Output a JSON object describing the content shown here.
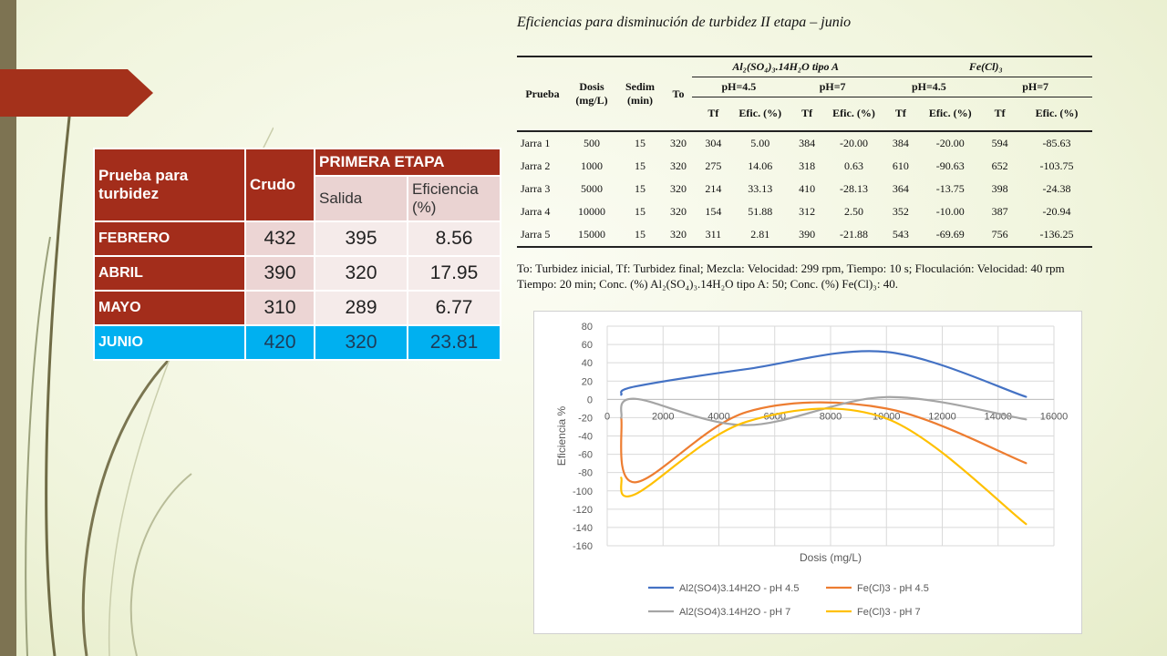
{
  "left_table": {
    "header_prueba": "Prueba para turbidez",
    "header_crudo": "Crudo",
    "header_etapa": "PRIMERA ETAPA",
    "header_salida": "Salida",
    "header_eficiencia": "Eficiencia (%)",
    "rows": [
      {
        "mes": "FEBRERO",
        "crudo": "432",
        "salida": "395",
        "eficiencia": "8.56"
      },
      {
        "mes": "ABRIL",
        "crudo": "390",
        "salida": "320",
        "eficiencia": "17.95"
      },
      {
        "mes": "MAYO",
        "crudo": "310",
        "salida": "289",
        "eficiencia": "6.77"
      },
      {
        "mes": "JUNIO",
        "crudo": "420",
        "salida": "320",
        "eficiencia": "23.81"
      }
    ]
  },
  "right_table": {
    "title": "Eficiencias para disminución de turbidez II etapa – junio",
    "h_prueba": "Prueba",
    "h_dosis": "Dosis (mg/L)",
    "h_sedim": "Sedim (min)",
    "h_to": "To",
    "h_al": "Al₂(SO₄)₃.14H₂O tipo A",
    "h_fe": "Fe(Cl)₃",
    "h_ph45": "pH=4.5",
    "h_ph7": "pH=7",
    "h_tf": "Tf",
    "h_efic": "Efic. (%)",
    "rows": [
      [
        "Jarra 1",
        "500",
        "15",
        "320",
        "304",
        "5.00",
        "384",
        "-20.00",
        "384",
        "-20.00",
        "594",
        "-85.63"
      ],
      [
        "Jarra 2",
        "1000",
        "15",
        "320",
        "275",
        "14.06",
        "318",
        "0.63",
        "610",
        "-90.63",
        "652",
        "-103.75"
      ],
      [
        "Jarra 3",
        "5000",
        "15",
        "320",
        "214",
        "33.13",
        "410",
        "-28.13",
        "364",
        "-13.75",
        "398",
        "-24.38"
      ],
      [
        "Jarra 4",
        "10000",
        "15",
        "320",
        "154",
        "51.88",
        "312",
        "2.50",
        "352",
        "-10.00",
        "387",
        "-20.94"
      ],
      [
        "Jarra 5",
        "15000",
        "15",
        "320",
        "311",
        "2.81",
        "390",
        "-21.88",
        "543",
        "-69.69",
        "756",
        "-136.25"
      ]
    ],
    "note": "To: Turbidez inicial, Tf: Turbidez final; Mezcla: Velocidad: 299 rpm, Tiempo: 10 s; Floculación: Velocidad: 40 rpm Tiempo: 20 min; Conc. (%) Al₂(SO₄)₃.14H₂O tipo A: 50; Conc. (%) Fe(Cl)₃: 40."
  },
  "chart_data": {
    "type": "line",
    "title": "",
    "xlabel": "Dosis (mg/L)",
    "ylabel": "Eficiencia %",
    "xlim": [
      0,
      16000
    ],
    "ylim": [
      -160,
      80
    ],
    "xticks": [
      0,
      2000,
      4000,
      6000,
      8000,
      10000,
      12000,
      14000,
      16000
    ],
    "yticks": [
      80,
      60,
      40,
      20,
      0,
      -20,
      -40,
      -60,
      -80,
      -100,
      -120,
      -140,
      -160
    ],
    "grid": true,
    "smooth": true,
    "legend_position": "bottom",
    "x": [
      500,
      1000,
      5000,
      10000,
      15000
    ],
    "series": [
      {
        "name": "Al2(SO4)3.14H2O - pH 4.5",
        "color": "#4472c4",
        "values": [
          5.0,
          14.06,
          33.13,
          51.88,
          2.81
        ]
      },
      {
        "name": "Fe(Cl)3 - pH 4.5",
        "color": "#ed7d31",
        "values": [
          -20.0,
          -90.63,
          -13.75,
          -10.0,
          -69.69
        ]
      },
      {
        "name": "Al2(SO4)3.14H2O - pH 7",
        "color": "#a5a5a5",
        "values": [
          -20.0,
          0.63,
          -28.13,
          2.5,
          -21.88
        ]
      },
      {
        "name": "Fe(Cl)3 - pH 7",
        "color": "#ffc000",
        "values": [
          -85.63,
          -103.75,
          -24.38,
          -20.94,
          -136.25
        ]
      }
    ]
  }
}
